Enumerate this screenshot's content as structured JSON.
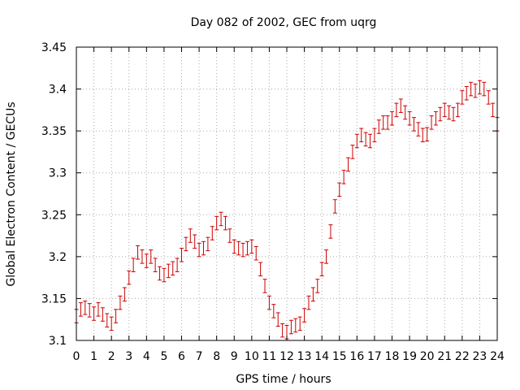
{
  "chart_data": {
    "type": "scatter",
    "title": "Day 082 of 2002, GEC from uqrg",
    "xlabel": "GPS time / hours",
    "ylabel": "Global Electron Content / GECUs",
    "xlim": [
      0,
      24
    ],
    "ylim": [
      3.1,
      3.45
    ],
    "grid": true,
    "error_bars": true,
    "colors": {
      "series": "#cc0000",
      "grid": "#aaaaaa",
      "axis": "#000000"
    },
    "x_ticks": [
      0,
      1,
      2,
      3,
      4,
      5,
      6,
      7,
      8,
      9,
      10,
      11,
      12,
      13,
      14,
      15,
      16,
      17,
      18,
      19,
      20,
      21,
      22,
      23,
      24
    ],
    "x_tick_labels": [
      "0",
      "1",
      "2",
      "3",
      "4",
      "5",
      "6",
      "7",
      "8",
      "9",
      "10",
      "11",
      "12",
      "13",
      "14",
      "15",
      "16",
      "17",
      "18",
      "19",
      "20",
      "21",
      "22",
      "23",
      "24"
    ],
    "y_ticks": [
      3.1,
      3.15,
      3.2,
      3.25,
      3.3,
      3.35,
      3.4,
      3.45
    ],
    "y_tick_labels": [
      "3.1",
      "3.15",
      "3.2",
      "3.25",
      "3.3",
      "3.35",
      "3.4",
      "3.45"
    ],
    "error": 0.008,
    "x": [
      0,
      0.25,
      0.5,
      0.75,
      1,
      1.25,
      1.5,
      1.75,
      2,
      2.25,
      2.5,
      2.75,
      3,
      3.25,
      3.5,
      3.75,
      4,
      4.25,
      4.5,
      4.75,
      5,
      5.25,
      5.5,
      5.75,
      6,
      6.25,
      6.5,
      6.75,
      7,
      7.25,
      7.5,
      7.75,
      8,
      8.25,
      8.5,
      8.75,
      9,
      9.25,
      9.5,
      9.75,
      10,
      10.25,
      10.5,
      10.75,
      11,
      11.25,
      11.5,
      11.75,
      12,
      12.25,
      12.5,
      12.75,
      13,
      13.25,
      13.5,
      13.75,
      14,
      14.25,
      14.5,
      14.75,
      15,
      15.25,
      15.5,
      15.75,
      16,
      16.25,
      16.5,
      16.75,
      17,
      17.25,
      17.5,
      17.75,
      18,
      18.25,
      18.5,
      18.75,
      19,
      19.25,
      19.5,
      19.75,
      20,
      20.25,
      20.5,
      20.75,
      21,
      21.25,
      21.5,
      21.75,
      22,
      22.25,
      22.5,
      22.75,
      23,
      23.25,
      23.5,
      23.75,
      24
    ],
    "y": [
      3.129,
      3.137,
      3.139,
      3.136,
      3.132,
      3.137,
      3.131,
      3.124,
      3.12,
      3.129,
      3.145,
      3.155,
      3.175,
      3.19,
      3.205,
      3.2,
      3.195,
      3.2,
      3.19,
      3.18,
      3.178,
      3.183,
      3.186,
      3.19,
      3.202,
      3.215,
      3.225,
      3.218,
      3.208,
      3.21,
      3.215,
      3.228,
      3.24,
      3.245,
      3.24,
      3.225,
      3.212,
      3.21,
      3.208,
      3.21,
      3.212,
      3.204,
      3.185,
      3.165,
      3.145,
      3.135,
      3.125,
      3.112,
      3.11,
      3.116,
      3.118,
      3.12,
      3.13,
      3.145,
      3.155,
      3.165,
      3.185,
      3.2,
      3.23,
      3.26,
      3.28,
      3.295,
      3.31,
      3.325,
      3.338,
      3.345,
      3.34,
      3.338,
      3.345,
      3.355,
      3.36,
      3.36,
      3.365,
      3.375,
      3.38,
      3.372,
      3.365,
      3.358,
      3.352,
      3.345,
      3.346,
      3.36,
      3.365,
      3.37,
      3.375,
      3.372,
      3.37,
      3.375,
      3.39,
      3.395,
      3.4,
      3.398,
      3.402,
      3.4,
      3.39,
      3.375,
      3.358
    ]
  }
}
